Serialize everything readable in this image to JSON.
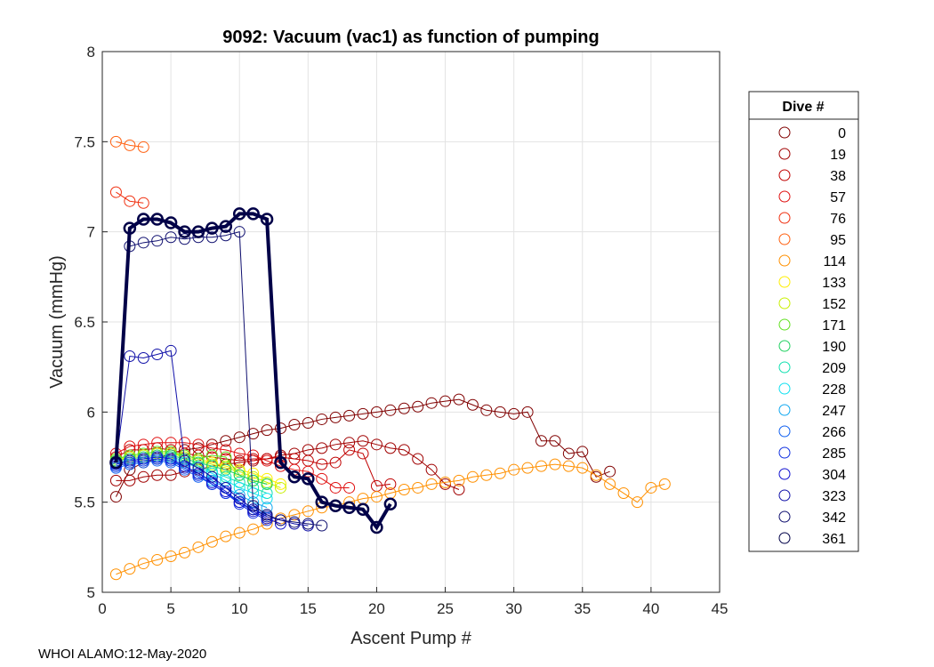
{
  "chart_data": {
    "type": "line",
    "title": "9092: Vacuum (vac1) as function of pumping",
    "xlabel": "Ascent Pump #",
    "ylabel": "Vacuum (mmHg)",
    "xlim": [
      0,
      45
    ],
    "ylim": [
      5,
      8
    ],
    "xticks": [
      0,
      5,
      10,
      15,
      20,
      25,
      30,
      35,
      40,
      45
    ],
    "yticks": [
      5,
      5.5,
      6,
      6.5,
      7,
      7.5,
      8
    ],
    "grid": true,
    "legend": {
      "title": "Dive #",
      "position": "right",
      "entries": [
        {
          "label": "0",
          "color": "#800000"
        },
        {
          "label": "19",
          "color": "#a00000"
        },
        {
          "label": "38",
          "color": "#c00000"
        },
        {
          "label": "57",
          "color": "#e01010"
        },
        {
          "label": "76",
          "color": "#f03010"
        },
        {
          "label": "95",
          "color": "#ff6010"
        },
        {
          "label": "114",
          "color": "#ff9000"
        },
        {
          "label": "133",
          "color": "#ffee00"
        },
        {
          "label": "152",
          "color": "#c8f000"
        },
        {
          "label": "171",
          "color": "#60e020"
        },
        {
          "label": "190",
          "color": "#20d060"
        },
        {
          "label": "209",
          "color": "#10e0b0"
        },
        {
          "label": "228",
          "color": "#10e0f0"
        },
        {
          "label": "247",
          "color": "#10a8f0"
        },
        {
          "label": "266",
          "color": "#1060f0"
        },
        {
          "label": "285",
          "color": "#1030e0"
        },
        {
          "label": "304",
          "color": "#1010d0"
        },
        {
          "label": "323",
          "color": "#1010a8"
        },
        {
          "label": "342",
          "color": "#101070"
        },
        {
          "label": "361",
          "color": "#000048"
        }
      ]
    },
    "series": [
      {
        "name": "0",
        "color": "#800000",
        "x": [
          1,
          2,
          3,
          4,
          5,
          6,
          7,
          8,
          9,
          10,
          11,
          12,
          13,
          14,
          15,
          16,
          17,
          18,
          19,
          20,
          21,
          22,
          23,
          24,
          25,
          26,
          27,
          28,
          29,
          30,
          31,
          32,
          33,
          34,
          35,
          36,
          37
        ],
        "y": [
          5.53,
          5.68,
          5.72,
          5.74,
          5.77,
          5.79,
          5.8,
          5.82,
          5.84,
          5.86,
          5.88,
          5.9,
          5.91,
          5.93,
          5.94,
          5.96,
          5.97,
          5.98,
          5.99,
          6.0,
          6.01,
          6.02,
          6.03,
          6.05,
          6.06,
          6.07,
          6.04,
          6.01,
          6.0,
          5.99,
          6.0,
          5.84,
          5.84,
          5.77,
          5.78,
          5.64,
          5.67
        ]
      },
      {
        "name": "19",
        "color": "#a00000",
        "x": [
          1,
          2,
          3,
          4,
          5,
          6,
          7,
          8,
          9,
          10,
          11,
          12,
          13,
          14,
          15,
          16,
          17,
          18,
          19,
          20,
          21,
          22,
          23,
          24,
          25,
          26
        ],
        "y": [
          5.62,
          5.62,
          5.64,
          5.65,
          5.65,
          5.67,
          5.68,
          5.7,
          5.71,
          5.72,
          5.73,
          5.74,
          5.76,
          5.77,
          5.79,
          5.8,
          5.82,
          5.83,
          5.84,
          5.82,
          5.8,
          5.79,
          5.74,
          5.68,
          5.6,
          5.57
        ]
      },
      {
        "name": "38",
        "color": "#c00000",
        "x": [
          1,
          2,
          3,
          4,
          5,
          6,
          7,
          8,
          9,
          10,
          11,
          12,
          13,
          14,
          15,
          16,
          17,
          18,
          19,
          20,
          21
        ],
        "y": [
          5.75,
          5.79,
          5.79,
          5.8,
          5.79,
          5.77,
          5.76,
          5.75,
          5.74,
          5.73,
          5.74,
          5.74,
          5.75,
          5.74,
          5.73,
          5.71,
          5.72,
          5.79,
          5.77,
          5.59,
          5.6
        ]
      },
      {
        "name": "57",
        "color": "#e01010",
        "x": [
          1,
          2,
          3,
          4,
          5,
          6,
          7,
          8,
          9,
          10,
          11,
          12,
          13,
          14,
          15,
          16,
          17,
          18
        ],
        "y": [
          5.77,
          5.81,
          5.82,
          5.83,
          5.83,
          5.83,
          5.82,
          5.8,
          5.79,
          5.77,
          5.76,
          5.73,
          5.7,
          5.68,
          5.67,
          5.63,
          5.58,
          5.58
        ]
      },
      {
        "name": "76",
        "color": "#f03010",
        "x": [
          1,
          2,
          3
        ],
        "y": [
          7.22,
          7.17,
          7.16
        ]
      },
      {
        "name": "95",
        "color": "#ff6010",
        "x": [
          1,
          2,
          3
        ],
        "y": [
          7.5,
          7.48,
          7.47
        ]
      },
      {
        "name": "114",
        "color": "#ff9000",
        "x": [
          1,
          2,
          3,
          4,
          5,
          6,
          7,
          8,
          9,
          10,
          11,
          12,
          13,
          14,
          15,
          16,
          17,
          18,
          19,
          20,
          21,
          22,
          23,
          24,
          25,
          26,
          27,
          28,
          29,
          30,
          31,
          32,
          33,
          34,
          35,
          36,
          37,
          38,
          39,
          40,
          41
        ],
        "y": [
          5.1,
          5.13,
          5.16,
          5.18,
          5.2,
          5.22,
          5.25,
          5.28,
          5.31,
          5.33,
          5.35,
          5.38,
          5.41,
          5.43,
          5.45,
          5.47,
          5.48,
          5.5,
          5.52,
          5.53,
          5.55,
          5.57,
          5.58,
          5.6,
          5.61,
          5.62,
          5.64,
          5.65,
          5.66,
          5.68,
          5.69,
          5.7,
          5.71,
          5.7,
          5.69,
          5.65,
          5.6,
          5.55,
          5.5,
          5.58,
          5.6
        ]
      },
      {
        "name": "133",
        "color": "#ffee00",
        "x": [
          1,
          2,
          3,
          4,
          5,
          6,
          7,
          8,
          9,
          10,
          11,
          12,
          13
        ],
        "y": [
          5.73,
          5.75,
          5.76,
          5.77,
          5.77,
          5.76,
          5.74,
          5.72,
          5.7,
          5.68,
          5.66,
          5.63,
          5.6
        ]
      },
      {
        "name": "152",
        "color": "#c8f000",
        "x": [
          1,
          2,
          3,
          4,
          5,
          6,
          7,
          8,
          9,
          10,
          11,
          12,
          13
        ],
        "y": [
          5.74,
          5.75,
          5.76,
          5.77,
          5.77,
          5.75,
          5.73,
          5.71,
          5.69,
          5.67,
          5.64,
          5.61,
          5.58
        ]
      },
      {
        "name": "171",
        "color": "#60e020",
        "x": [
          1,
          2,
          3,
          4,
          5,
          6,
          7,
          8,
          9,
          10,
          11,
          12
        ],
        "y": [
          5.74,
          5.76,
          5.77,
          5.78,
          5.78,
          5.76,
          5.74,
          5.76,
          5.75,
          5.65,
          5.62,
          5.6
        ]
      },
      {
        "name": "190",
        "color": "#20d060",
        "x": [
          1,
          2,
          3,
          4,
          5,
          6,
          7,
          8,
          9,
          10,
          11,
          12
        ],
        "y": [
          5.73,
          5.74,
          5.75,
          5.76,
          5.76,
          5.74,
          5.72,
          5.7,
          5.68,
          5.65,
          5.62,
          5.6
        ]
      },
      {
        "name": "209",
        "color": "#10e0b0",
        "x": [
          1,
          2,
          3,
          4,
          5,
          6,
          7,
          8,
          9,
          10,
          11,
          12
        ],
        "y": [
          5.72,
          5.73,
          5.74,
          5.75,
          5.75,
          5.73,
          5.7,
          5.67,
          5.64,
          5.61,
          5.58,
          5.55
        ]
      },
      {
        "name": "228",
        "color": "#10e0f0",
        "x": [
          1,
          2,
          3,
          4,
          5,
          6,
          7,
          8,
          9,
          10,
          11,
          12
        ],
        "y": [
          5.71,
          5.73,
          5.74,
          5.75,
          5.74,
          5.72,
          5.69,
          5.66,
          5.62,
          5.58,
          5.55,
          5.52
        ]
      },
      {
        "name": "247",
        "color": "#10a8f0",
        "x": [
          1,
          2,
          3,
          4,
          5,
          6,
          7,
          8,
          9,
          10,
          11,
          12
        ],
        "y": [
          5.7,
          5.72,
          5.73,
          5.74,
          5.73,
          5.7,
          5.66,
          5.62,
          5.58,
          5.54,
          5.5,
          5.47
        ]
      },
      {
        "name": "266",
        "color": "#1060f0",
        "x": [
          1,
          2,
          3,
          4,
          5,
          6,
          7,
          8,
          9,
          10,
          11,
          12
        ],
        "y": [
          5.69,
          5.71,
          5.72,
          5.73,
          5.72,
          5.68,
          5.64,
          5.6,
          5.55,
          5.5,
          5.46,
          5.43
        ]
      },
      {
        "name": "285",
        "color": "#1030e0",
        "x": [
          1,
          2,
          3,
          4,
          5,
          6,
          7,
          8,
          9,
          10,
          11,
          12
        ],
        "y": [
          5.7,
          5.72,
          5.73,
          5.74,
          5.73,
          5.69,
          5.65,
          5.6,
          5.55,
          5.49,
          5.44,
          5.4
        ]
      },
      {
        "name": "304",
        "color": "#1010d0",
        "x": [
          1,
          2,
          3,
          4,
          5,
          6,
          7,
          8,
          9,
          10,
          11,
          12,
          13
        ],
        "y": [
          5.71,
          5.73,
          5.74,
          5.75,
          5.74,
          5.7,
          5.66,
          5.61,
          5.56,
          5.5,
          5.45,
          5.41,
          5.38
        ]
      },
      {
        "name": "323",
        "color": "#1010a8",
        "x": [
          1,
          2,
          3,
          4,
          5,
          6,
          7,
          8,
          9,
          10,
          11,
          12,
          13,
          14,
          15
        ],
        "y": [
          5.72,
          6.31,
          6.3,
          6.32,
          6.34,
          5.73,
          5.69,
          5.64,
          5.58,
          5.52,
          5.46,
          5.42,
          5.4,
          5.38,
          5.37
        ]
      },
      {
        "name": "342",
        "color": "#101070",
        "x": [
          1,
          2,
          3,
          4,
          5,
          6,
          7,
          8,
          9,
          10,
          11,
          12,
          13,
          14,
          15,
          16
        ],
        "y": [
          5.72,
          6.92,
          6.94,
          6.95,
          6.97,
          6.96,
          6.97,
          6.97,
          6.98,
          7.0,
          5.48,
          5.43,
          5.4,
          5.39,
          5.38,
          5.37
        ]
      },
      {
        "name": "361",
        "color": "#000048",
        "x": [
          1,
          2,
          3,
          4,
          5,
          6,
          7,
          8,
          9,
          10,
          11,
          12,
          13,
          14,
          15,
          16,
          17,
          18,
          19,
          20,
          21
        ],
        "y": [
          5.72,
          7.02,
          7.07,
          7.07,
          7.05,
          7.0,
          7.0,
          7.02,
          7.03,
          7.1,
          7.1,
          7.07,
          5.72,
          5.64,
          5.63,
          5.5,
          5.48,
          5.47,
          5.46,
          5.36,
          5.49
        ]
      }
    ]
  },
  "footer": "WHOI ALAMO:12-May-2020"
}
